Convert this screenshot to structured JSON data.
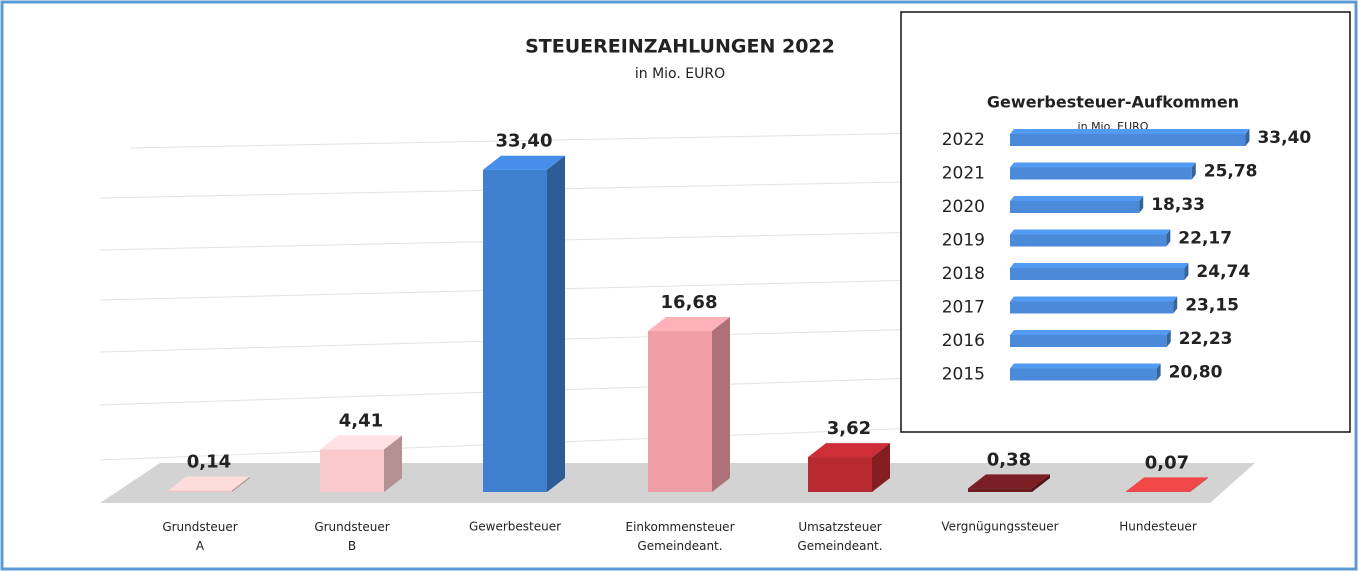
{
  "chart_data": [
    {
      "type": "bar3d",
      "title": "STEUEREINZAHLUNGEN 2022",
      "subtitle": "in Mio. EURO",
      "categories": [
        "Grundsteuer A",
        "Grundsteuer B",
        "Gewerbesteuer",
        "Einkommensteuer Gemeindeant.",
        "Umsatzsteuer Gemeindeant.",
        "Vergnügungssteuer",
        "Hundesteuer"
      ],
      "values": [
        0.14,
        4.41,
        33.4,
        16.68,
        3.62,
        0.38,
        0.07
      ],
      "value_labels": [
        "0,14",
        "4,41",
        "33,40",
        "16,68",
        "3,62",
        "0,38",
        "0,07"
      ],
      "colors": [
        "#f2c4c4",
        "#f9c9cc",
        "#3f7fd0",
        "#f09ea5",
        "#b82a30",
        "#6e1c20",
        "#d94040"
      ],
      "ylim": [
        0,
        40
      ]
    },
    {
      "type": "hbar",
      "title": "Gewerbesteuer-Aufkommen",
      "subtitle": "in Mio. EURO",
      "categories": [
        "2022",
        "2021",
        "2020",
        "2019",
        "2018",
        "2017",
        "2016",
        "2015"
      ],
      "values": [
        33.4,
        25.78,
        18.33,
        22.17,
        24.74,
        23.15,
        22.23,
        20.8
      ],
      "value_labels": [
        "33,40",
        "25,78",
        "18,33",
        "22,17",
        "24,74",
        "23,15",
        "22,23",
        "20,80"
      ],
      "color": "#4a8ad8",
      "xlim": [
        0,
        40
      ]
    }
  ]
}
